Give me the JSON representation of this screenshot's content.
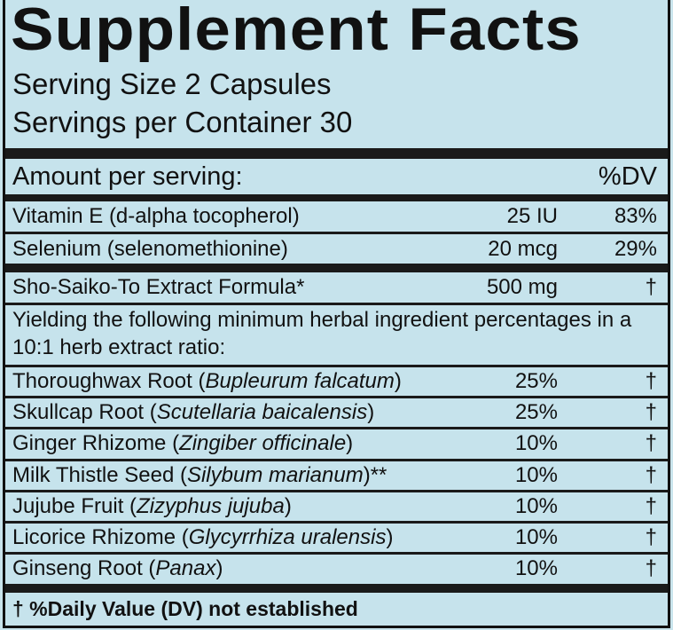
{
  "title": "Supplement Facts",
  "serving_size": "Serving Size 2 Capsules",
  "servings_per_container": "Servings per Container 30",
  "header": {
    "amount": "Amount per serving:",
    "dv": "%DV"
  },
  "nutrients": [
    {
      "name": "Vitamin E (d-alpha tocopherol)",
      "amount": "25 IU",
      "dv": "83%"
    },
    {
      "name": "Selenium (selenomethionine)",
      "amount": "20 mcg",
      "dv": "29%"
    }
  ],
  "formula": {
    "name": "Sho-Saiko-To Extract Formula*",
    "amount": "500 mg",
    "dv": "†"
  },
  "yield_note": "Yielding the following minimum herbal ingredient percentages in a 10:1 herb extract ratio:",
  "herbs": [
    {
      "name": "Thoroughwax Root (",
      "latin": "Bupleurum falcatum",
      "suffix": ")",
      "pct": "25%",
      "dv": "†"
    },
    {
      "name": "Skullcap Root (",
      "latin": "Scutellaria baicalensis",
      "suffix": ")",
      "pct": "25%",
      "dv": "†"
    },
    {
      "name": "Ginger Rhizome (",
      "latin": "Zingiber officinale",
      "suffix": ")",
      "pct": "10%",
      "dv": "†"
    },
    {
      "name": "Milk Thistle Seed (",
      "latin": "Silybum marianum",
      "suffix": ")**",
      "pct": "10%",
      "dv": "†"
    },
    {
      "name": "Jujube Fruit (",
      "latin": "Zizyphus jujuba",
      "suffix": ")",
      "pct": "10%",
      "dv": "†"
    },
    {
      "name": "Licorice Rhizome (",
      "latin": "Glycyrrhiza uralensis",
      "suffix": ")",
      "pct": "10%",
      "dv": "†"
    },
    {
      "name": "Ginseng Root (",
      "latin": "Panax",
      "suffix": ")",
      "pct": "10%",
      "dv": "†"
    }
  ],
  "footnote": "† %Daily Value (DV) not established"
}
